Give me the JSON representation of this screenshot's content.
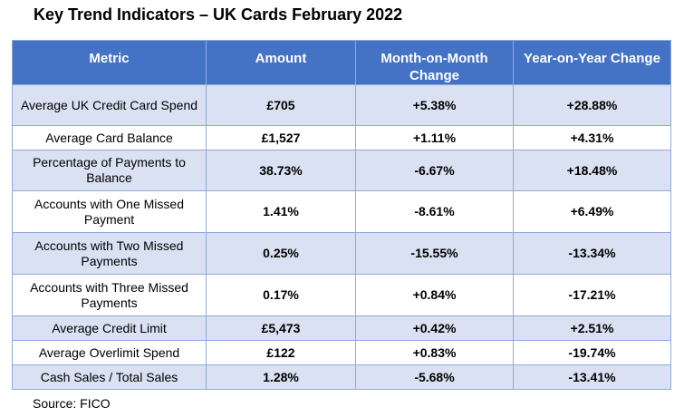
{
  "title": "Key Trend Indicators – UK Cards February 2022",
  "columns": [
    "Metric",
    "Amount",
    "Month-on-Month Change",
    "Year-on-Year Change"
  ],
  "rows": [
    {
      "metric": "Average UK Credit Card Spend",
      "amount": "£705",
      "mom": "+5.38%",
      "yoy": "+28.88%"
    },
    {
      "metric": "Average Card Balance",
      "amount": "£1,527",
      "mom": "+1.11%",
      "yoy": "+4.31%"
    },
    {
      "metric": "Percentage of Payments to Balance",
      "amount": "38.73%",
      "mom": "-6.67%",
      "yoy": "+18.48%"
    },
    {
      "metric": "Accounts with One Missed Payment",
      "amount": "1.41%",
      "mom": "-8.61%",
      "yoy": "+6.49%"
    },
    {
      "metric": "Accounts with Two Missed Payments",
      "amount": "0.25%",
      "mom": "-15.55%",
      "yoy": "-13.34%"
    },
    {
      "metric": "Accounts with Three Missed Payments",
      "amount": "0.17%",
      "mom": "+0.84%",
      "yoy": "-17.21%"
    },
    {
      "metric": "Average Credit Limit",
      "amount": "£5,473",
      "mom": "+0.42%",
      "yoy": "+2.51%"
    },
    {
      "metric": "Average Overlimit Spend",
      "amount": "£122",
      "mom": "+0.83%",
      "yoy": "-19.74%"
    },
    {
      "metric": "Cash Sales / Total Sales",
      "amount": "1.28%",
      "mom": "-5.68%",
      "yoy": "-13.41%"
    }
  ],
  "source": "Source: FICO",
  "colors": {
    "header_bg": "#4472c4",
    "header_text": "#ffffff",
    "band_row": "#d9e1f2",
    "plain_row": "#ffffff",
    "border": "#8faadc"
  }
}
